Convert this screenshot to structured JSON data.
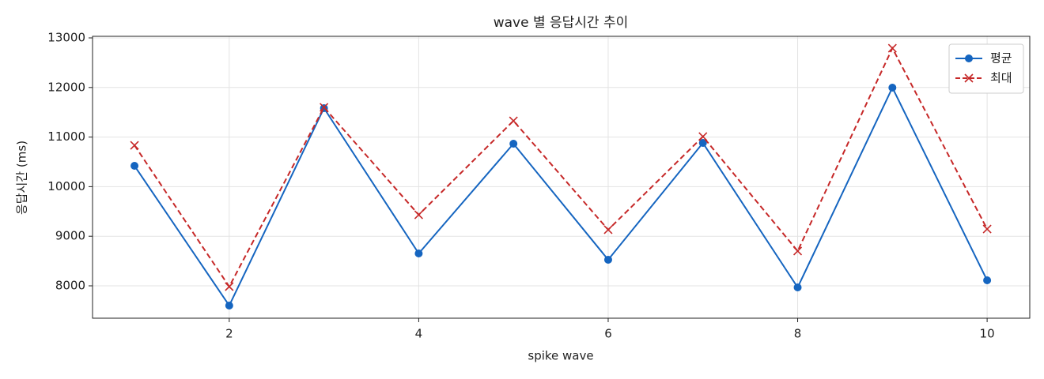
{
  "chart_data": {
    "type": "line",
    "title": "wave 별 응답시간 추이",
    "x_label": "spike wave",
    "y_label": "응답시간 (ms)",
    "x": [
      1,
      2,
      3,
      4,
      5,
      6,
      7,
      8,
      9,
      10
    ],
    "series": [
      {
        "name": "평균",
        "color": "#1565c0",
        "marker": "o",
        "linestyle": "solid",
        "values": [
          10420,
          7602,
          11583,
          8653,
          10866,
          8526,
          10882,
          7968,
          11997,
          8111
        ]
      },
      {
        "name": "최대",
        "color": "#c62828",
        "marker": "x",
        "linestyle": "dashed",
        "values": [
          10834,
          7984,
          11599,
          9433,
          11328,
          9131,
          11010,
          8701,
          12793,
          9146
        ]
      }
    ],
    "xlim": [
      0.557,
      10.45
    ],
    "xticks": [
      2,
      4,
      6,
      8,
      10
    ],
    "ylim": [
      7347,
      13032
    ],
    "yticks": [
      8000,
      9000,
      10000,
      11000,
      12000,
      13000
    ],
    "grid": true,
    "legend": "upper right"
  }
}
